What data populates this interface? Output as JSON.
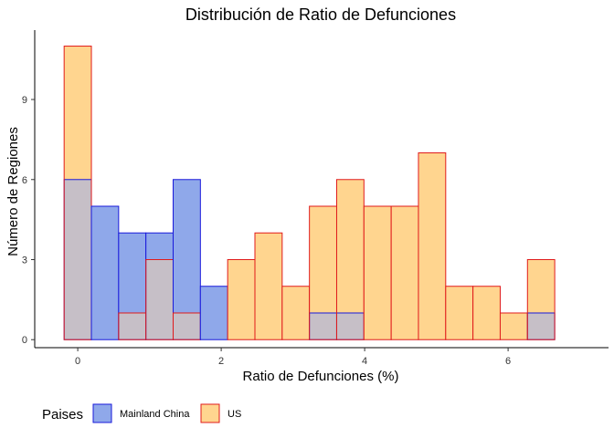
{
  "chart_data": {
    "type": "histogram",
    "title": "Distribución de Ratio de Defunciones",
    "xlabel": "Ratio de Defunciones (%)",
    "ylabel": "Número de Regiones",
    "xlim": [
      -0.6,
      7.4
    ],
    "ylim": [
      -0.3,
      11.6
    ],
    "x_ticks": [
      0,
      2,
      4,
      6
    ],
    "y_ticks": [
      0,
      3,
      6,
      9
    ],
    "grid": false,
    "bins": [
      {
        "x0": -0.19,
        "x1": 0.19
      },
      {
        "x0": 0.19,
        "x1": 0.57
      },
      {
        "x0": 0.57,
        "x1": 0.95
      },
      {
        "x0": 0.95,
        "x1": 1.33
      },
      {
        "x0": 1.33,
        "x1": 1.71
      },
      {
        "x0": 1.71,
        "x1": 2.09
      },
      {
        "x0": 2.09,
        "x1": 2.47
      },
      {
        "x0": 2.47,
        "x1": 2.85
      },
      {
        "x0": 2.85,
        "x1": 3.23
      },
      {
        "x0": 3.23,
        "x1": 3.61
      },
      {
        "x0": 3.61,
        "x1": 3.99
      },
      {
        "x0": 3.99,
        "x1": 4.37
      },
      {
        "x0": 4.37,
        "x1": 4.75
      },
      {
        "x0": 4.75,
        "x1": 5.13
      },
      {
        "x0": 5.13,
        "x1": 5.51
      },
      {
        "x0": 5.51,
        "x1": 5.89
      },
      {
        "x0": 5.89,
        "x1": 6.27
      },
      {
        "x0": 6.27,
        "x1": 6.65
      }
    ],
    "series": [
      {
        "name": "Mainland China",
        "fill": "#8FA8EA",
        "stroke": "#1A1ADB",
        "counts": [
          6,
          5,
          4,
          4,
          6,
          2,
          0,
          0,
          0,
          1,
          1,
          0,
          0,
          0,
          0,
          0,
          0,
          1
        ]
      },
      {
        "name": "US",
        "fill": "#FFD58F",
        "stroke": "#E01B1B",
        "counts": [
          11,
          0,
          1,
          3,
          1,
          0,
          3,
          4,
          2,
          5,
          6,
          5,
          5,
          7,
          2,
          2,
          1,
          3
        ]
      }
    ],
    "legend": {
      "title": "Paises",
      "position": "bottom-left"
    },
    "overlap_fill": "#C6BFC7"
  }
}
